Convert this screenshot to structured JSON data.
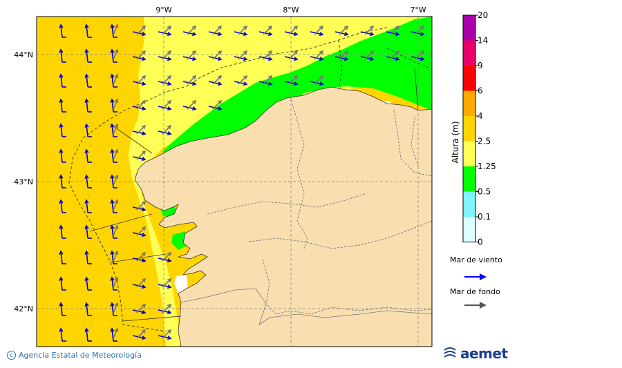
{
  "map": {
    "lon_labels": [
      "9°W",
      "8°W",
      "7°W"
    ],
    "lat_labels": [
      "44°N",
      "43°N",
      "42°N"
    ],
    "colors": {
      "land": "#f9dfb0",
      "sea_4": "#ffd500",
      "sea_2_5": "#ffff55",
      "sea_1_25": "#00ff00",
      "calm": "#ffffff",
      "wind_arrow": "#0000cc",
      "swell_arrow": "#777777"
    }
  },
  "legend": {
    "title": "Altura (m)",
    "ticks": [
      "20",
      "14",
      "9",
      "6",
      "4",
      "2.5",
      "1.25",
      "0.5",
      "0.1",
      "0"
    ],
    "colors": [
      "#aa00aa",
      "#e8006a",
      "#ff0000",
      "#ffaa00",
      "#ffd500",
      "#ffff55",
      "#00ff00",
      "#7ff5ff",
      "#dcffff"
    ],
    "wind_sea_label": "Mar de viento",
    "swell_label": "Mar de fondo",
    "wind_sea_color": "#0000ff",
    "swell_color": "#555555"
  },
  "footer": {
    "credit": "Agencia Estatal de Meteorología",
    "logo": "aemet"
  }
}
